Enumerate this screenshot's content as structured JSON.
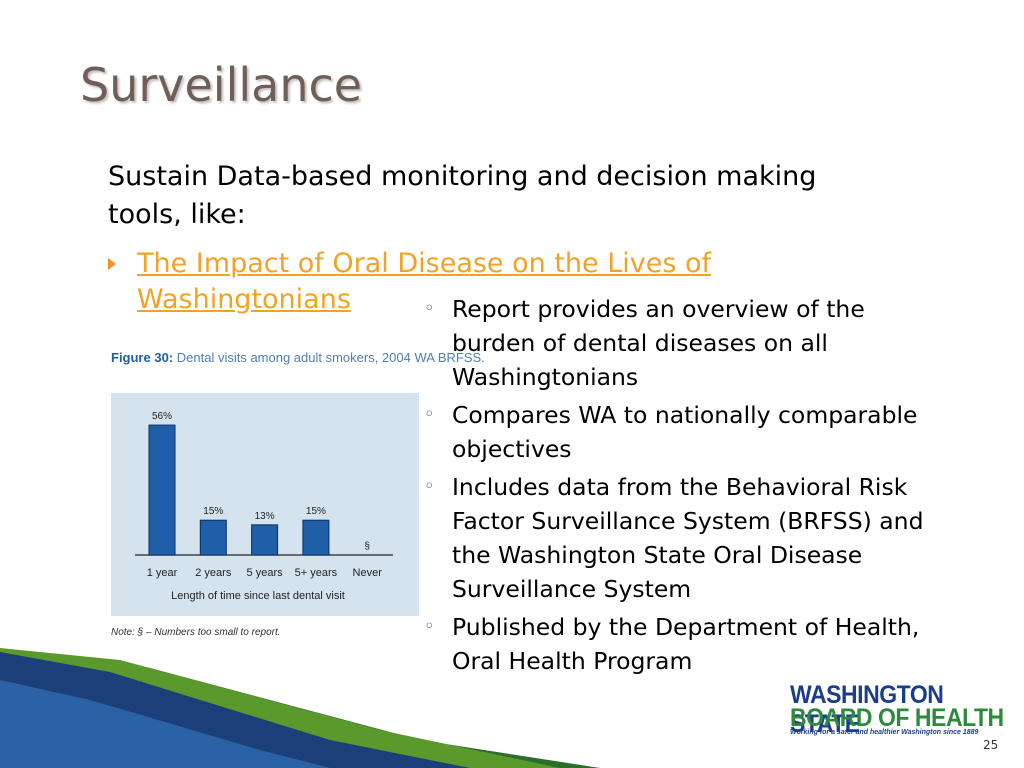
{
  "slide": {
    "title": "Surveillance",
    "intro": "Sustain Data-based monitoring and decision making tools, like:",
    "link": "The Impact of Oral Disease on the Lives of Washingtonians",
    "bullets": [
      "Report provides an overview of the burden of dental diseases on all Washingtonians",
      "Compares WA to nationally comparable objectives",
      "Includes data from the Behavioral Risk Factor Surveillance System (BRFSS) and the Washington State Oral Disease Surveillance System",
      "Published by the Department of Health, Oral Health Program"
    ],
    "logo": {
      "line1": "WASHINGTON STATE",
      "line2": "BOARD OF HEALTH",
      "tagline": "Working for a safer and healthier Washington since 1889"
    },
    "page_number": "25"
  },
  "chart_data": {
    "type": "bar",
    "figure_label": "Figure 30:",
    "title": "Dental visits among adult smokers, 2004 WA BRFSS.",
    "categories": [
      "1 year",
      "2 years",
      "5 years",
      "5+ years",
      "Never"
    ],
    "values": [
      56,
      15,
      13,
      15,
      null
    ],
    "value_labels": [
      "56%",
      "15%",
      "13%",
      "15%",
      "§"
    ],
    "color": "#1f5fa8",
    "x_label": "Length of time since last dental visit",
    "note": "Note: § – Numbers too small to report."
  }
}
